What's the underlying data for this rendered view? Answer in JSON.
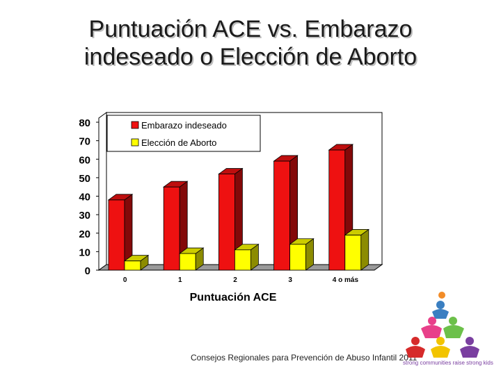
{
  "slide": {
    "title_line1": "Puntuación ACE vs. Embarazo",
    "title_line2": "indeseado o Elección de Aborto",
    "footer": "Consejos Regionales para Prevención de Abuso Infantil 2011",
    "logo_tagline": "strong communities raise strong kids"
  },
  "chart_data": {
    "type": "bar",
    "title": "",
    "xlabel": "Puntuación ACE",
    "ylabel": "",
    "ylim": [
      0,
      80
    ],
    "yticks": [
      0,
      10,
      20,
      30,
      40,
      50,
      60,
      70,
      80
    ],
    "categories": [
      "0",
      "1",
      "2",
      "3",
      "4 o más"
    ],
    "series": [
      {
        "name": "Embarazo indeseado",
        "values": [
          38,
          45,
          52,
          59,
          65
        ],
        "color": "#ee1111"
      },
      {
        "name": "Elección de Aborto",
        "values": [
          5,
          9,
          11,
          14,
          19
        ],
        "color": "#ffff00"
      }
    ],
    "legend_position": "top-left",
    "grid": false,
    "style": "3d"
  }
}
